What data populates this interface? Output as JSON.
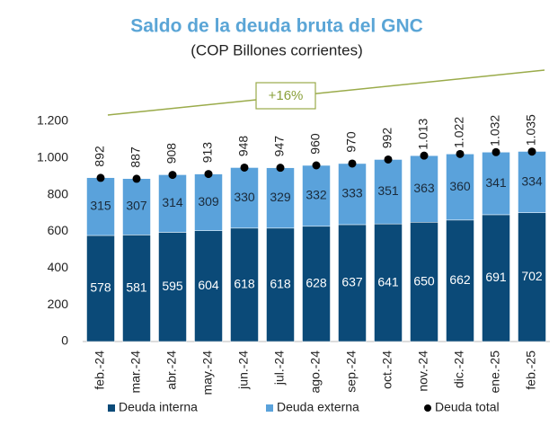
{
  "chart_data": {
    "type": "stacked_bar",
    "title": "Saldo de la deuda bruta del GNC",
    "subtitle": "(COP Billones corrientes)",
    "annotation": "+16%",
    "categories": [
      "feb.-24",
      "mar.-24",
      "abr.-24",
      "may.-24",
      "jun.-24",
      "jul.-24",
      "ago.-24",
      "sep.-24",
      "oct.-24",
      "nov.-24",
      "dic.-24",
      "ene.-25",
      "feb.-25"
    ],
    "series": [
      {
        "name": "Deuda interna",
        "color": "#0b4a78",
        "values": [
          578,
          581,
          595,
          604,
          618,
          618,
          628,
          637,
          641,
          650,
          662,
          691,
          702
        ]
      },
      {
        "name": "Deuda externa",
        "color": "#5aa2db",
        "values": [
          315,
          307,
          314,
          309,
          330,
          329,
          332,
          333,
          351,
          363,
          360,
          341,
          334
        ]
      },
      {
        "name": "Deuda total",
        "color": "#000000",
        "type": "dot",
        "values": [
          892,
          887,
          908,
          913,
          948,
          947,
          960,
          970,
          992,
          1013,
          1022,
          1032,
          1035
        ],
        "value_labels": [
          "892",
          "887",
          "908",
          "913",
          "948",
          "947",
          "960",
          "970",
          "992",
          "1.013",
          "1.022",
          "1.032",
          "1.035"
        ]
      }
    ],
    "ylim": [
      0,
      1200
    ],
    "yticks": [
      0,
      200,
      400,
      600,
      800,
      {
        "value": 1000,
        "label": "1.000"
      },
      {
        "value": 1200,
        "label": "1.200"
      }
    ],
    "grid": false,
    "legend": "bottom"
  }
}
